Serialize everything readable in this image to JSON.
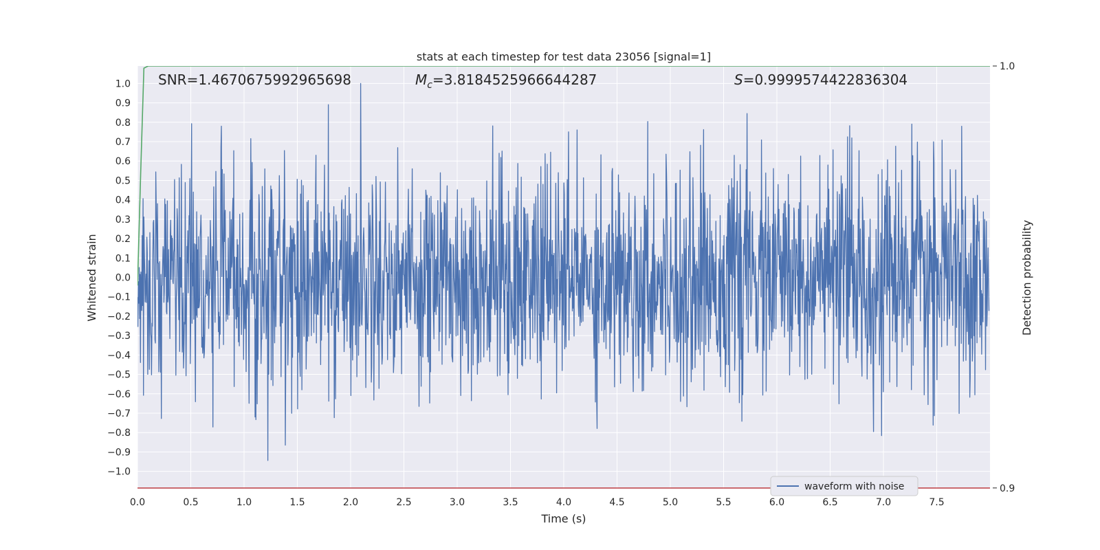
{
  "chart_data": {
    "type": "line",
    "title": "stats at each timestep for test data 23056 [signal=1]",
    "xlabel": "Time (s)",
    "ylabel": "Whitened strain",
    "y2label": "Detection probability",
    "xlim": [
      0,
      8
    ],
    "ylim": [
      -1.09,
      1.09
    ],
    "y2lim": [
      0.8998,
      1.0
    ],
    "xticks": [
      0.0,
      0.5,
      1.0,
      1.5,
      2.0,
      2.5,
      3.0,
      3.5,
      4.0,
      4.5,
      5.0,
      5.5,
      6.0,
      6.5,
      7.0,
      7.5
    ],
    "yticks": [
      1.0,
      0.9,
      0.8,
      0.7,
      0.6,
      0.5,
      0.4,
      0.3,
      0.2,
      0.1,
      0.0,
      -0.1,
      -0.2,
      -0.3,
      -0.4,
      -0.5,
      -0.6,
      -0.7,
      -0.8,
      -0.9,
      -1.0
    ],
    "y2ticks": [
      1.0,
      0.9
    ],
    "grid": true,
    "legend_position": "lower-right",
    "series": [
      {
        "name": "waveform with noise",
        "color": "#4c72b0",
        "kind": "noisy-waveform",
        "typical_amplitude": 0.28,
        "peak_max": 1.0,
        "peak_min": -1.0,
        "samples": 2000
      },
      {
        "axis": "right",
        "color": "#55a868",
        "kind": "detection-probability",
        "x": [
          0.0,
          0.03,
          0.06,
          0.1,
          8.0
        ],
        "y": [
          0.948,
          0.975,
          0.9995,
          1.0,
          1.0
        ]
      },
      {
        "axis": "right",
        "color": "#c44e52",
        "kind": "threshold",
        "x": [
          0.0,
          8.0
        ],
        "y": [
          0.9,
          0.9
        ]
      }
    ],
    "annotations": [
      {
        "prefix": "SNR",
        "subscript": "",
        "text": "=1.4670675992965698"
      },
      {
        "prefix": "M",
        "subscript": "c",
        "text": "=3.8184525966644287"
      },
      {
        "prefix": "S",
        "subscript": "",
        "text": "=0.9999574422836304"
      }
    ]
  }
}
